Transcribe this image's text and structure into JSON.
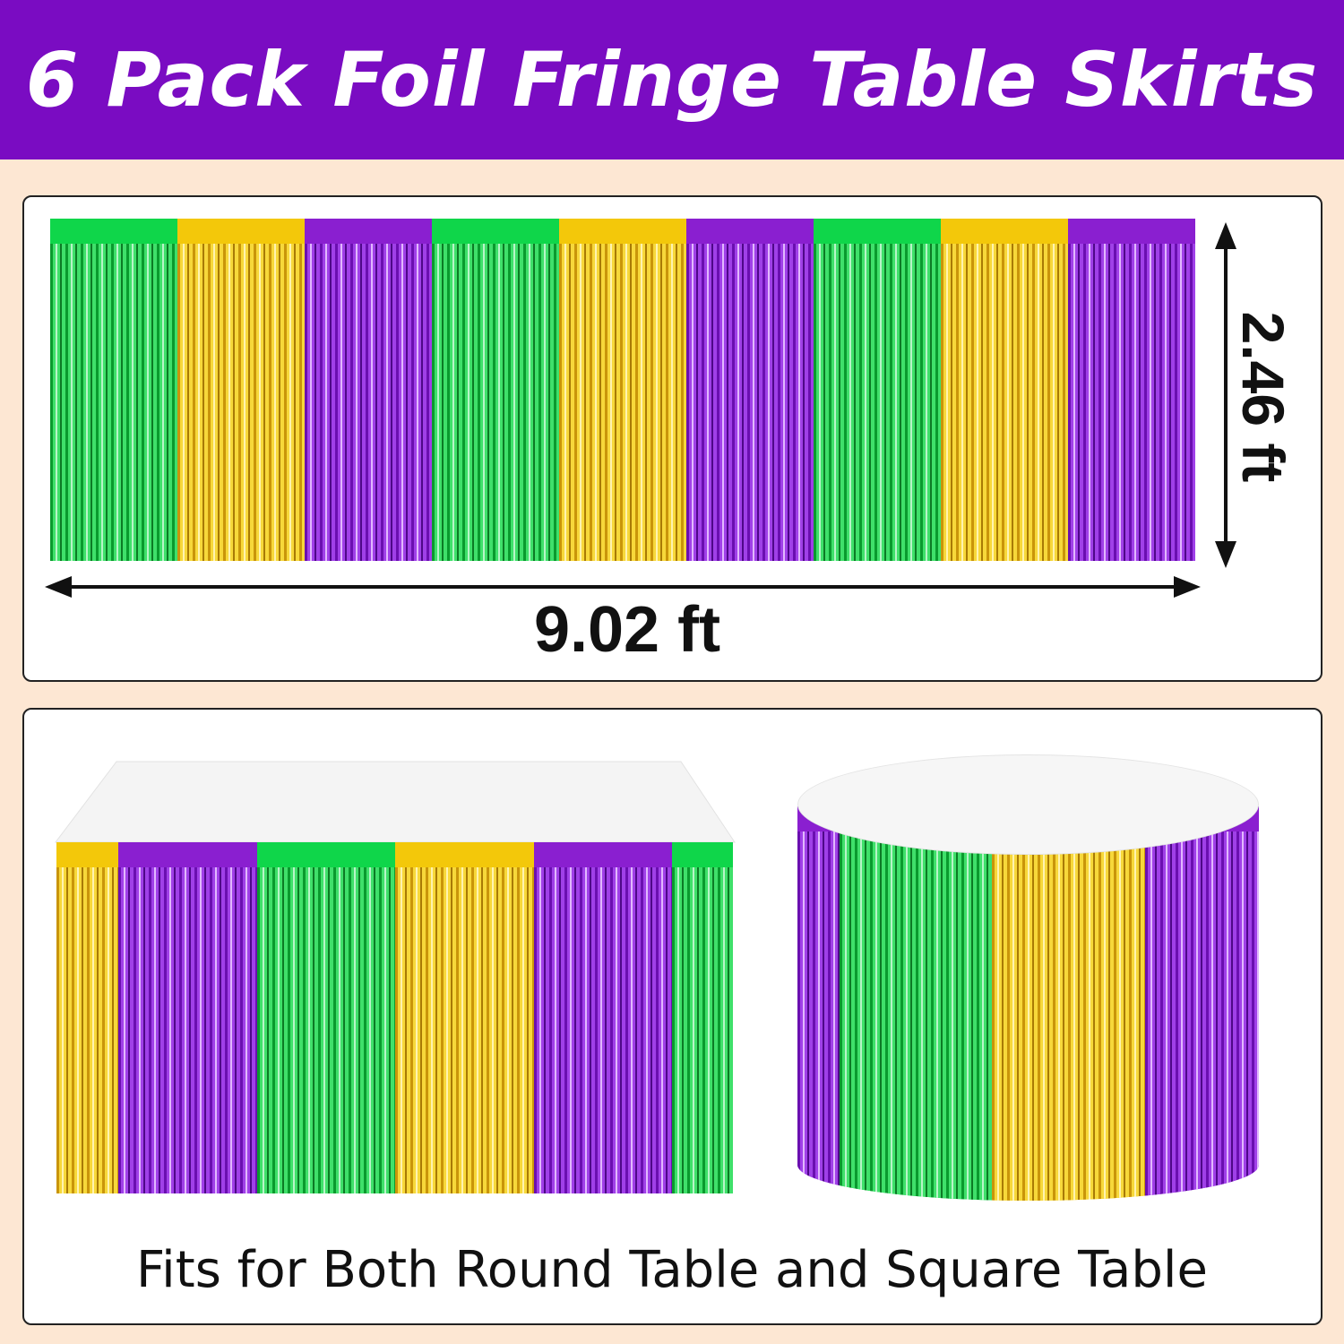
{
  "title": "6 Pack Foil Fringe Table Skirts",
  "dimensions": {
    "width_label": "9.02 ft",
    "height_label": "2.46 ft"
  },
  "caption": "Fits for Both Round Table and Square Table",
  "colors": {
    "green": "#0fd64a",
    "gold": "#f3c80a",
    "purple": "#8a1fd0",
    "header": "#7a0cc2",
    "background": "#fde7d3"
  },
  "flat_skirt_colors": [
    "green",
    "gold",
    "purple",
    "green",
    "gold",
    "purple",
    "green",
    "gold",
    "purple"
  ],
  "square_table_colors": [
    "gold",
    "purple",
    "green",
    "gold",
    "purple",
    "green"
  ],
  "round_table_colors": [
    "purple",
    "green",
    "gold",
    "purple"
  ]
}
